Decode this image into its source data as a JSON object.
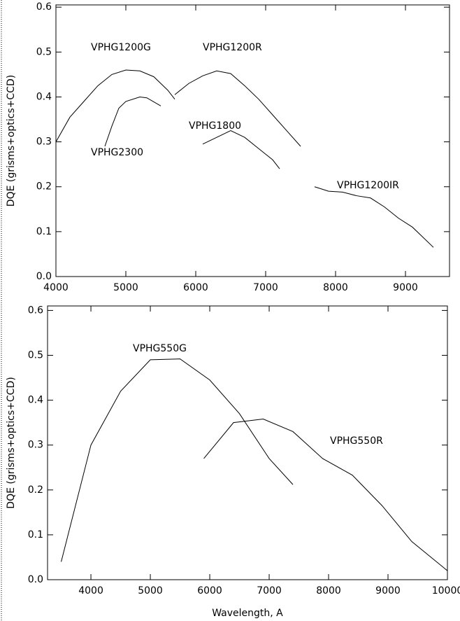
{
  "chart_data": [
    {
      "type": "line",
      "ylabel": "DQE (grisms+optics+CCD)",
      "xlim": [
        4000,
        9630
      ],
      "ylim": [
        0,
        0.605
      ],
      "xticks": [
        4000,
        5000,
        6000,
        7000,
        8000,
        9000
      ],
      "yticks": [
        {
          "value": 0,
          "label": "0.0"
        },
        0.1,
        0.2,
        0.3,
        0.4,
        0.5,
        0.6
      ],
      "series": [
        {
          "name": "VPHG1200G",
          "color": "#000000",
          "x": [
            4000,
            4200,
            4400,
            4600,
            4800,
            5000,
            5200,
            5400,
            5600,
            5700
          ],
          "values": [
            0.3,
            0.355,
            0.39,
            0.425,
            0.45,
            0.46,
            0.458,
            0.445,
            0.415,
            0.395
          ]
        },
        {
          "name": "VPHG1200R",
          "color": "#000000",
          "x": [
            5700,
            5900,
            6100,
            6300,
            6500,
            6700,
            6900,
            7100,
            7300,
            7500
          ],
          "values": [
            0.405,
            0.43,
            0.447,
            0.458,
            0.452,
            0.425,
            0.395,
            0.36,
            0.325,
            0.29
          ]
        },
        {
          "name": "VPHG2300",
          "color": "#000000",
          "x": [
            4700,
            4800,
            4900,
            5000,
            5200,
            5300,
            5500
          ],
          "values": [
            0.29,
            0.335,
            0.375,
            0.39,
            0.4,
            0.398,
            0.38
          ]
        },
        {
          "name": "VPHG1800",
          "color": "#000000",
          "x": [
            6100,
            6300,
            6500,
            6700,
            6900,
            7100,
            7200
          ],
          "values": [
            0.295,
            0.31,
            0.325,
            0.31,
            0.285,
            0.26,
            0.24
          ]
        },
        {
          "name": "VPHG1200IR",
          "color": "#000000",
          "x": [
            7700,
            7900,
            8100,
            8300,
            8500,
            8700,
            8900,
            9100,
            9400
          ],
          "values": [
            0.2,
            0.19,
            0.188,
            0.18,
            0.175,
            0.155,
            0.13,
            0.11,
            0.065
          ]
        }
      ]
    },
    {
      "type": "line",
      "ylabel": "DQE (grisms+optics+CCD)",
      "xlabel": "Wavelength, A",
      "xlim": [
        3270,
        10000
      ],
      "ylim": [
        0,
        0.61
      ],
      "xticks": [
        4000,
        5000,
        6000,
        7000,
        8000,
        9000,
        10000
      ],
      "yticks": [
        {
          "value": 0,
          "label": "0.0"
        },
        0.1,
        0.2,
        0.3,
        0.4,
        0.5,
        0.6
      ],
      "series": [
        {
          "name": "VPHG550G",
          "color": "#000000",
          "x": [
            3500,
            4000,
            4500,
            5000,
            5500,
            6000,
            6500,
            7000,
            7400
          ],
          "values": [
            0.04,
            0.3,
            0.42,
            0.49,
            0.492,
            0.445,
            0.37,
            0.27,
            0.212
          ]
        },
        {
          "name": "VPHG550R",
          "color": "#000000",
          "x": [
            5900,
            6400,
            6900,
            7400,
            7900,
            8400,
            8900,
            9400,
            10000
          ],
          "values": [
            0.27,
            0.35,
            0.358,
            0.33,
            0.27,
            0.233,
            0.165,
            0.085,
            0.02
          ]
        }
      ]
    }
  ]
}
